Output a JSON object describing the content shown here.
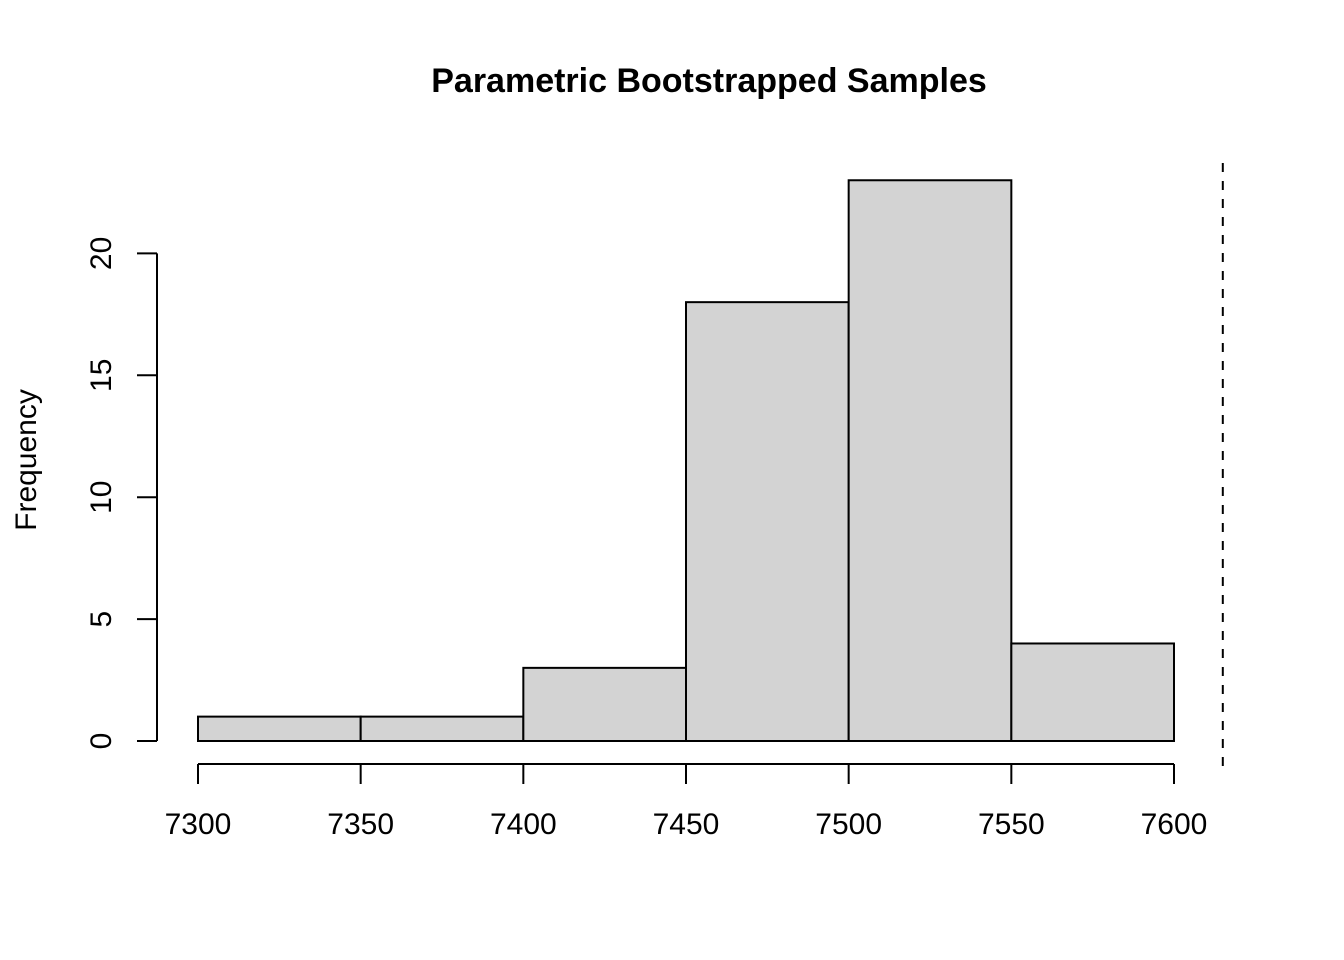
{
  "chart_data": {
    "type": "bar",
    "subtype": "histogram",
    "title": "Parametric Bootstrapped Samples",
    "xlabel": "",
    "ylabel": "Frequency",
    "bins": [
      {
        "start": 7300,
        "end": 7350,
        "count": 1
      },
      {
        "start": 7350,
        "end": 7400,
        "count": 1
      },
      {
        "start": 7400,
        "end": 7450,
        "count": 3
      },
      {
        "start": 7450,
        "end": 7500,
        "count": 18
      },
      {
        "start": 7500,
        "end": 7550,
        "count": 23
      },
      {
        "start": 7550,
        "end": 7600,
        "count": 4
      }
    ],
    "x_ticks": [
      7300,
      7350,
      7400,
      7450,
      7500,
      7550,
      7600
    ],
    "y_ticks": [
      0,
      5,
      10,
      15,
      20
    ],
    "reference_line": {
      "x": 7615,
      "style": "dashed"
    },
    "bar_color": "#d3d3d3",
    "grid": false,
    "legend": "none"
  }
}
